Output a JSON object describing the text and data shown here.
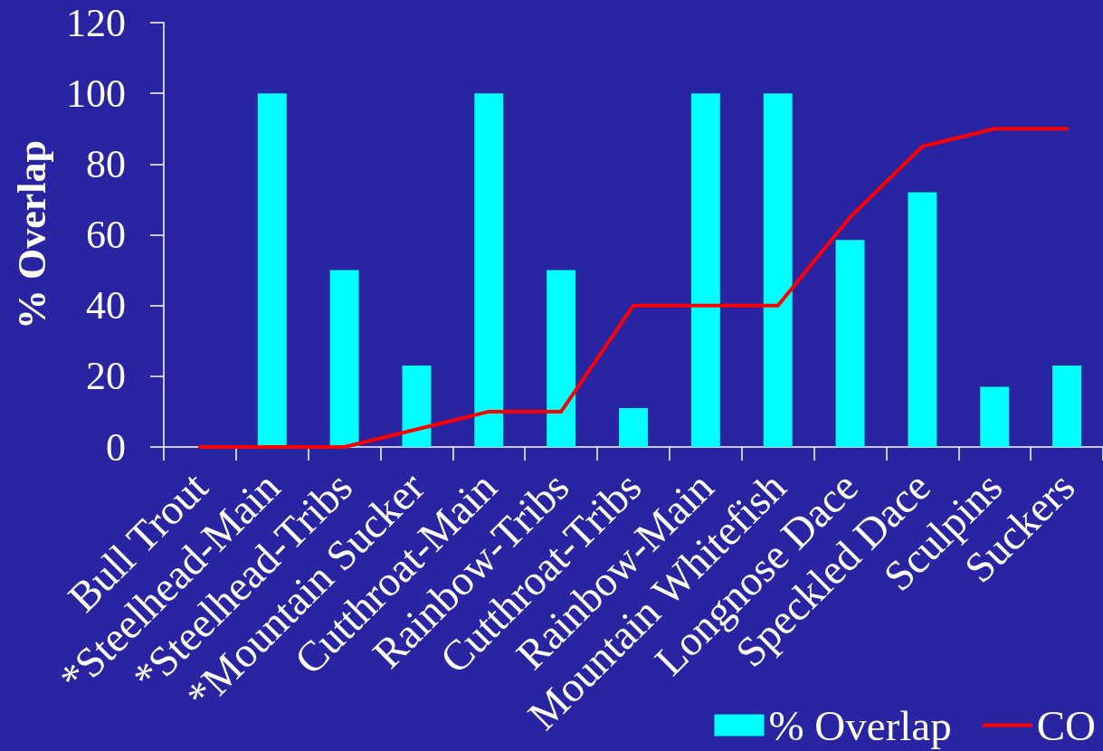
{
  "chart_data": {
    "type": "bar",
    "ylabel": "% Overlap",
    "categories": [
      "Bull Trout",
      "*Steelhead-Main",
      "*Steelhead-Tribs",
      "*Mountain Sucker",
      "Cutthroat-Main",
      "Rainbow-Tribs",
      "Cutthroat-Tribs",
      "Rainbow-Main",
      "Mountain Whitefish",
      "Longnose Dace",
      "Speckled Dace",
      "Sculpins",
      "Suckers"
    ],
    "series": [
      {
        "name": "% Overlap",
        "color": "#00ffff",
        "values": [
          0,
          100,
          50,
          23,
          100,
          50,
          11,
          100,
          100,
          58.5,
          72,
          17,
          23
        ]
      },
      {
        "name": "CO",
        "type": "line",
        "color": "#ff0000",
        "values": [
          0,
          0,
          0,
          5,
          10,
          10,
          40,
          40,
          40,
          65,
          85,
          90,
          90
        ]
      }
    ],
    "ylim": [
      0,
      120
    ],
    "yticks": [
      0,
      20,
      40,
      60,
      80,
      100,
      120
    ],
    "grid": false,
    "legend": "bottom right",
    "marker": "none",
    "line_style": "solid"
  }
}
